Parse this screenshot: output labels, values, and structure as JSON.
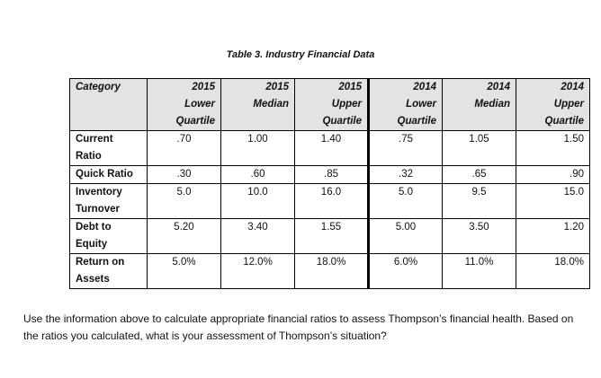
{
  "table": {
    "caption": "Table 3. Industry Financial Data",
    "headers": [
      [
        "Category"
      ],
      [
        "2015",
        "Lower",
        "Quartile"
      ],
      [
        "2015",
        "Median"
      ],
      [
        "2015",
        "Upper",
        "Quartile"
      ],
      [
        "2014",
        "Lower",
        "Quartile"
      ],
      [
        "2014",
        "Median"
      ],
      [
        "2014",
        "Upper",
        "Quartile"
      ]
    ],
    "rows": [
      {
        "category": [
          "Current",
          "Ratio"
        ],
        "values": [
          ".70",
          "1.00",
          "1.40",
          ".75",
          "1.05",
          "1.50"
        ]
      },
      {
        "category": [
          "Quick Ratio"
        ],
        "values": [
          ".30",
          ".60",
          ".85",
          ".32",
          ".65",
          ".90"
        ]
      },
      {
        "category": [
          "Inventory",
          "Turnover"
        ],
        "values": [
          "5.0",
          "10.0",
          "16.0",
          "5.0",
          "9.5",
          "15.0"
        ]
      },
      {
        "category": [
          "Debt to",
          "Equity"
        ],
        "values": [
          "5.20",
          "3.40",
          "1.55",
          "5.00",
          "3.50",
          "1.20"
        ]
      },
      {
        "category": [
          "Return on",
          "Assets"
        ],
        "values": [
          "5.0%",
          "12.0%",
          "18.0%",
          "6.0%",
          "11.0%",
          "18.0%"
        ]
      }
    ]
  },
  "question": {
    "text": "Use the information above to calculate appropriate financial ratios to assess Thompson’s financial health.  Based on the ratios you calculated, what is your assessment of Thompson’s situation?"
  }
}
